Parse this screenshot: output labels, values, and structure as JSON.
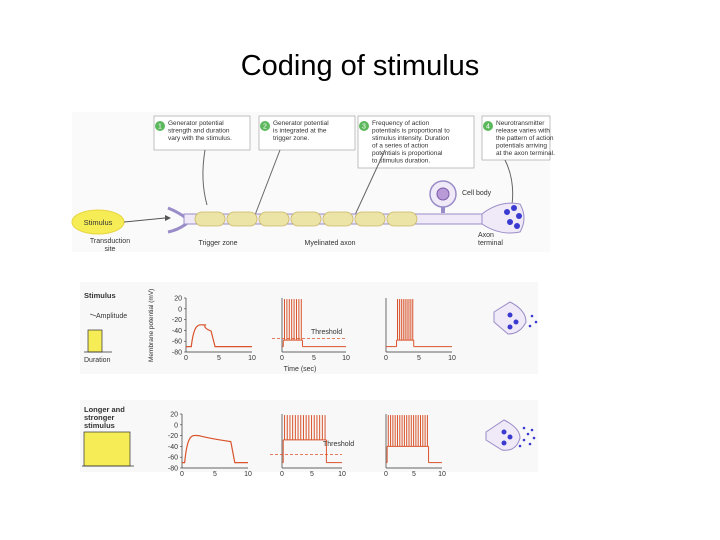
{
  "slide": {
    "title": "Coding of stimulus"
  },
  "top_diagram": {
    "callouts": [
      {
        "num": "1",
        "text": [
          "Generator potential",
          "strength and duration",
          "vary with the stimulus."
        ]
      },
      {
        "num": "2",
        "text": [
          "Generator potential",
          "is integrated at the",
          "trigger zone."
        ]
      },
      {
        "num": "3",
        "text": [
          "Frequency of action",
          "potentials is proportional to",
          "stimulus intensity. Duration",
          "of a series of action",
          "potentials is proportional",
          "to stimulus duration."
        ]
      },
      {
        "num": "4",
        "text": [
          "Neurotransmitter",
          "release varies with",
          "the pattern of action",
          "potentials arriving",
          "at the axon terminal."
        ]
      }
    ],
    "labels": {
      "stimulus": "Stimulus",
      "transduction": [
        "Transduction",
        "site"
      ],
      "trigger_zone": "Trigger zone",
      "myelinated_axon": "Myelinated axon",
      "cell_body": "Cell body",
      "axon_terminal": [
        "Axon",
        "terminal"
      ]
    }
  },
  "row1": {
    "stimulus_title": "Stimulus",
    "amplitude": "Amplitude",
    "duration": "Duration",
    "y_axis_label": "Membrane potential (mV)",
    "x_axis_label": "Time (sec)",
    "threshold": "Threshold"
  },
  "row2": {
    "stimulus_title": [
      "Longer and",
      "stronger",
      "stimulus"
    ],
    "threshold": "Threshold"
  },
  "chart_data": {
    "type": "line",
    "y_ticks": [
      "20",
      "0",
      "-20",
      "-40",
      "-60",
      "-80"
    ],
    "x_ticks": [
      "0",
      "5",
      "10"
    ],
    "ylim": [
      -80,
      20
    ],
    "xlim": [
      0,
      10
    ],
    "threshold_mV": -55
  },
  "colors": {
    "trace": "#d9532b",
    "neuron_fill": "#f0eaf8",
    "neuron_stroke": "#9a8cc8",
    "myelin": "#ece3a6",
    "stimulus_fill": "#f6ec55",
    "callout_num": "#5cb85c"
  }
}
